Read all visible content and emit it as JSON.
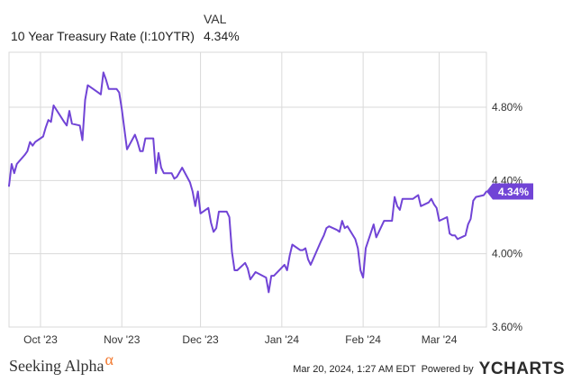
{
  "legend": {
    "header": "VAL",
    "series_name": "10 Year Treasury Rate (I:10YTR)",
    "series_value": "4.34%"
  },
  "footer": {
    "logo_text": "Seeking Alpha",
    "logo_symbol": "α",
    "timestamp": "Mar 20, 2024, 1:27 AM EDT",
    "powered_by": "Powered by",
    "brand": "YCHARTS"
  },
  "colors": {
    "series": "#7144d6",
    "grid": "#d9d9d9",
    "axis_text": "#333333",
    "logo_alpha": "#f2792f"
  },
  "chart_data": {
    "type": "line",
    "title": "",
    "xlabel": "",
    "ylabel": "",
    "xlim": [
      "2023-09-19",
      "2024-03-19"
    ],
    "ylim": [
      3.6,
      5.1
    ],
    "y_ticks": [
      3.6,
      4.0,
      4.4,
      4.8
    ],
    "y_tick_labels": [
      "3.60%",
      "4.00%",
      "4.40%",
      "4.80%"
    ],
    "x_ticks": [
      "2023-10-01",
      "2023-11-01",
      "2023-12-01",
      "2024-01-01",
      "2024-02-01",
      "2024-03-01"
    ],
    "x_tick_labels": [
      "Oct '23",
      "Nov '23",
      "Dec '23",
      "Jan '24",
      "Feb '24",
      "Mar '24"
    ],
    "grid": "vertical and horizontal",
    "last_value_label": "4.34%",
    "series": [
      {
        "name": "10 Year Treasury Rate (I:10YTR)",
        "x": [
          "2023-09-19",
          "2023-09-20",
          "2023-09-21",
          "2023-09-22",
          "2023-09-25",
          "2023-09-26",
          "2023-09-27",
          "2023-09-28",
          "2023-09-29",
          "2023-10-02",
          "2023-10-03",
          "2023-10-04",
          "2023-10-05",
          "2023-10-06",
          "2023-10-10",
          "2023-10-11",
          "2023-10-12",
          "2023-10-13",
          "2023-10-16",
          "2023-10-17",
          "2023-10-18",
          "2023-10-19",
          "2023-10-20",
          "2023-10-23",
          "2023-10-24",
          "2023-10-25",
          "2023-10-26",
          "2023-10-27",
          "2023-10-30",
          "2023-10-31",
          "2023-11-01",
          "2023-11-02",
          "2023-11-03",
          "2023-11-06",
          "2023-11-07",
          "2023-11-08",
          "2023-11-09",
          "2023-11-10",
          "2023-11-13",
          "2023-11-14",
          "2023-11-15",
          "2023-11-16",
          "2023-11-17",
          "2023-11-20",
          "2023-11-21",
          "2023-11-22",
          "2023-11-24",
          "2023-11-27",
          "2023-11-28",
          "2023-11-29",
          "2023-11-30",
          "2023-12-01",
          "2023-12-04",
          "2023-12-05",
          "2023-12-06",
          "2023-12-07",
          "2023-12-08",
          "2023-12-11",
          "2023-12-12",
          "2023-12-13",
          "2023-12-14",
          "2023-12-15",
          "2023-12-18",
          "2023-12-19",
          "2023-12-20",
          "2023-12-21",
          "2023-12-22",
          "2023-12-26",
          "2023-12-27",
          "2023-12-28",
          "2023-12-29",
          "2024-01-02",
          "2024-01-03",
          "2024-01-04",
          "2024-01-05",
          "2024-01-08",
          "2024-01-09",
          "2024-01-10",
          "2024-01-11",
          "2024-01-12",
          "2024-01-16",
          "2024-01-17",
          "2024-01-18",
          "2024-01-19",
          "2024-01-22",
          "2024-01-23",
          "2024-01-24",
          "2024-01-25",
          "2024-01-26",
          "2024-01-29",
          "2024-01-30",
          "2024-01-31",
          "2024-02-01",
          "2024-02-02",
          "2024-02-05",
          "2024-02-06",
          "2024-02-07",
          "2024-02-08",
          "2024-02-09",
          "2024-02-12",
          "2024-02-13",
          "2024-02-14",
          "2024-02-15",
          "2024-02-16",
          "2024-02-20",
          "2024-02-21",
          "2024-02-22",
          "2024-02-23",
          "2024-02-26",
          "2024-02-27",
          "2024-02-28",
          "2024-02-29",
          "2024-03-01",
          "2024-03-04",
          "2024-03-05",
          "2024-03-06",
          "2024-03-07",
          "2024-03-08",
          "2024-03-11",
          "2024-03-12",
          "2024-03-13",
          "2024-03-14",
          "2024-03-15",
          "2024-03-18",
          "2024-03-19"
        ],
        "values": [
          4.37,
          4.49,
          4.44,
          4.49,
          4.54,
          4.56,
          4.61,
          4.59,
          4.61,
          4.64,
          4.69,
          4.73,
          4.72,
          4.81,
          4.72,
          4.7,
          4.78,
          4.71,
          4.7,
          4.62,
          4.84,
          4.92,
          4.91,
          4.88,
          4.87,
          4.99,
          4.95,
          4.9,
          4.9,
          4.88,
          4.79,
          4.68,
          4.57,
          4.65,
          4.61,
          4.56,
          4.56,
          4.63,
          4.63,
          4.44,
          4.55,
          4.47,
          4.44,
          4.44,
          4.41,
          4.42,
          4.47,
          4.39,
          4.34,
          4.26,
          4.34,
          4.22,
          4.25,
          4.17,
          4.12,
          4.14,
          4.23,
          4.23,
          4.2,
          4.01,
          3.91,
          3.91,
          3.95,
          3.92,
          3.86,
          3.88,
          3.9,
          3.87,
          3.79,
          3.88,
          3.88,
          3.94,
          3.91,
          3.99,
          4.05,
          4.02,
          4.02,
          4.03,
          3.97,
          3.94,
          4.07,
          4.1,
          4.14,
          4.15,
          4.13,
          4.12,
          4.18,
          4.14,
          4.15,
          4.08,
          4.03,
          3.91,
          3.87,
          4.03,
          4.16,
          4.09,
          4.12,
          4.15,
          4.18,
          4.18,
          4.31,
          4.26,
          4.24,
          4.3,
          4.3,
          4.31,
          4.32,
          4.26,
          4.28,
          4.3,
          4.27,
          4.25,
          4.18,
          4.2,
          4.11,
          4.1,
          4.1,
          4.08,
          4.1,
          4.16,
          4.19,
          4.29,
          4.31,
          4.32,
          4.34
        ]
      }
    ]
  }
}
